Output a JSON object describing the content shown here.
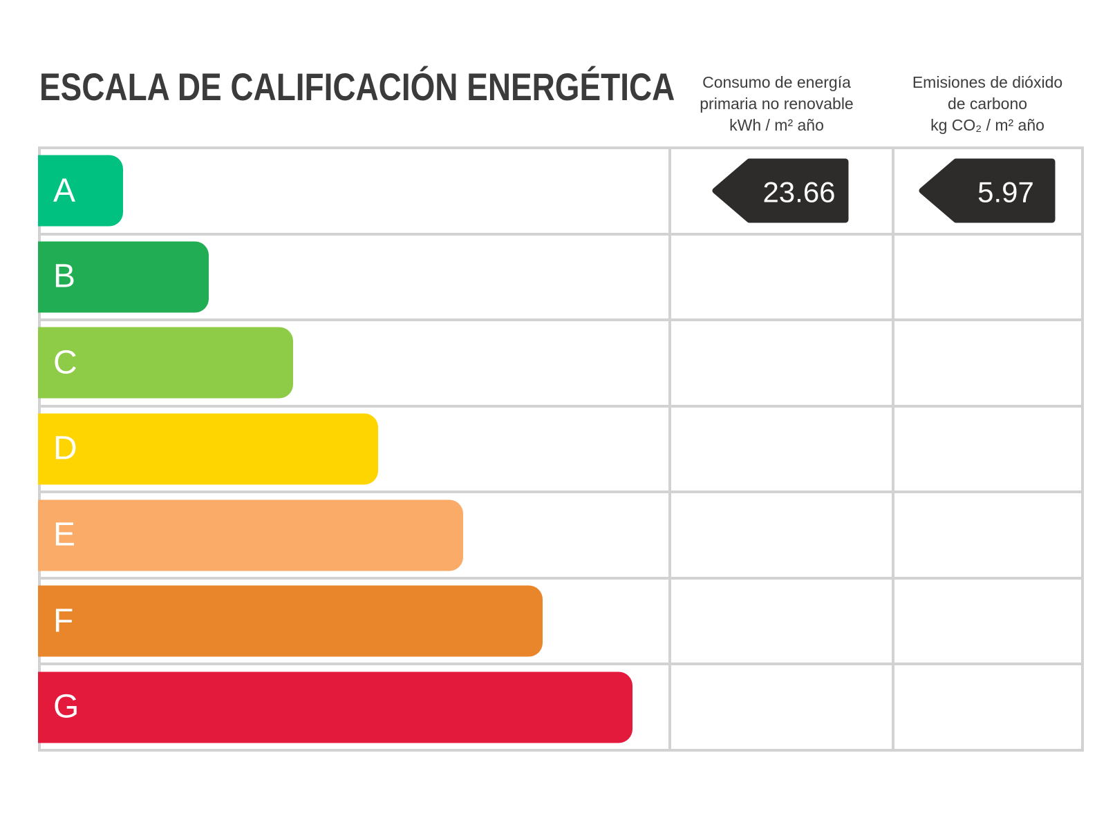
{
  "page": {
    "title": "ESCALA DE CALIFICACIÓN ENERGÉTICA"
  },
  "headers": {
    "energy": [
      "Consumo de energía",
      "primaria no renovable",
      "kWh / m² año"
    ],
    "emissions": [
      "Emisiones de dióxido",
      "de carbono",
      "kg CO₂ / m² año"
    ]
  },
  "table": {
    "grid_color": "#d2d2d2",
    "cell_background": "#ffffff"
  },
  "scale": {
    "badge_color": "#2d2c2b",
    "ratings": [
      {
        "letter": "A",
        "color": "#00c17f",
        "width_pct": 13.1,
        "energy_value": "23.66",
        "emissions_value": "5.97"
      },
      {
        "letter": "B",
        "color": "#21ad53",
        "width_pct": 26.8,
        "energy_value": "",
        "emissions_value": ""
      },
      {
        "letter": "C",
        "color": "#8ecb47",
        "width_pct": 40.2,
        "energy_value": "",
        "emissions_value": ""
      },
      {
        "letter": "D",
        "color": "#fed501",
        "width_pct": 53.8,
        "energy_value": "",
        "emissions_value": ""
      },
      {
        "letter": "E",
        "color": "#fbab68",
        "width_pct": 67.3,
        "energy_value": "",
        "emissions_value": ""
      },
      {
        "letter": "F",
        "color": "#e9862b",
        "width_pct": 80.0,
        "energy_value": "",
        "emissions_value": ""
      },
      {
        "letter": "G",
        "color": "#e41a3c",
        "width_pct": 94.3,
        "energy_value": "",
        "emissions_value": ""
      }
    ]
  },
  "chart_data": {
    "type": "bar",
    "orientation": "horizontal",
    "title": "ESCALA DE CALIFICACIÓN ENERGÉTICA",
    "categories": [
      "A",
      "B",
      "C",
      "D",
      "E",
      "F",
      "G"
    ],
    "series": [
      {
        "name": "relative_bar_length_pct",
        "values": [
          13.1,
          26.8,
          40.2,
          53.8,
          67.3,
          80.0,
          94.3
        ]
      }
    ],
    "bar_colors": [
      "#00c17f",
      "#21ad53",
      "#8ecb47",
      "#fed501",
      "#fbab68",
      "#e9862b",
      "#e41a3c"
    ],
    "annotations": [
      {
        "column": "Consumo de energía primaria no renovable kWh / m² año",
        "rating": "A",
        "value": 23.66
      },
      {
        "column": "Emisiones de dióxido de carbono kg CO₂ / m² año",
        "rating": "A",
        "value": 5.97
      }
    ],
    "legend": "none",
    "grid": "table-grid",
    "xlabel": "",
    "ylabel": ""
  }
}
